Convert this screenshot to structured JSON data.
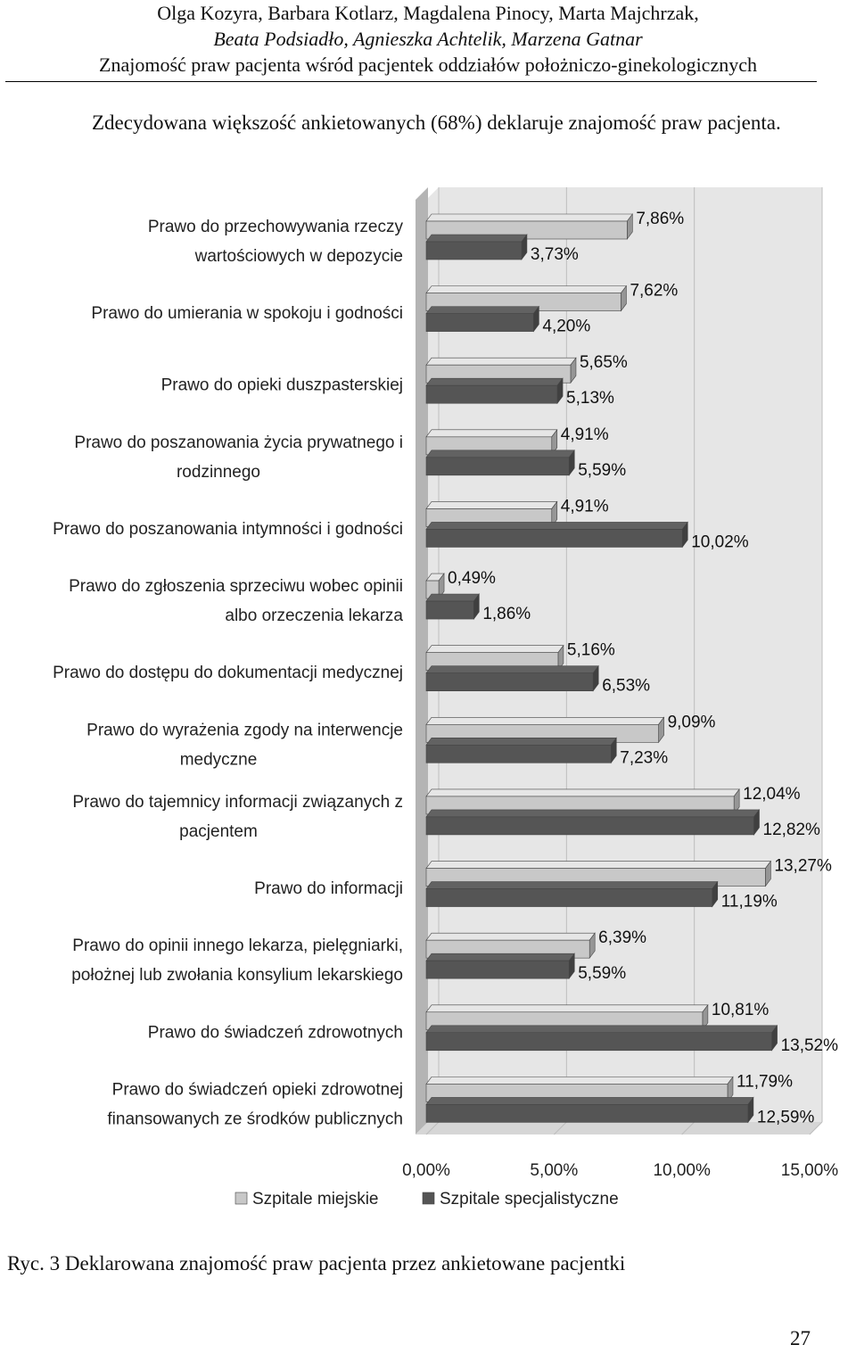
{
  "header": {
    "authors_line1": "Olga Kozyra, Barbara Kotlarz, Magdalena Pinocy, Marta Majchrzak,",
    "authors_line2": "Beata Podsiadło, Agnieszka Achtelik, Marzena Gatnar",
    "article_title": "Znajomość praw pacjenta wśród pacjentek oddziałów położniczo-ginekologicznych"
  },
  "intro_text": "Zdecydowana większość ankietowanych (68%) deklaruje znajomość praw pacjenta.",
  "caption": "Ryc. 3 Deklarowana znajomość praw pacjenta przez ankietowane pacjentki",
  "page_number": "27",
  "colors": {
    "series_light": "#c8c8c8",
    "series_dark": "#555555",
    "panel_bg": "#e6e6e6",
    "gridline": "#bdbdbd"
  },
  "chart_data": {
    "type": "bar",
    "orientation": "horizontal",
    "title": "",
    "xlabel": "",
    "ylabel": "",
    "xlim": [
      0,
      15
    ],
    "x_ticks": [
      {
        "value": 0,
        "label": "0,00%"
      },
      {
        "value": 5,
        "label": "5,00%"
      },
      {
        "value": 10,
        "label": "10,00%"
      },
      {
        "value": 15,
        "label": "15,00%"
      }
    ],
    "grid": true,
    "legend_position": "bottom",
    "categories": [
      [
        "Prawo do przechowywania  rzeczy",
        "wartościowych w depozycie"
      ],
      [
        "Prawo do umierania w spokoju i godności"
      ],
      [
        "Prawo do opieki duszpasterskiej"
      ],
      [
        "Prawo do poszanowania życia prywatnego i",
        "rodzinnego"
      ],
      [
        "Prawo do poszanowania intymności i godności"
      ],
      [
        "Prawo do zgłoszenia sprzeciwu wobec opinii",
        "albo orzeczenia lekarza"
      ],
      [
        "Prawo do dostępu do dokumentacji medycznej"
      ],
      [
        "Prawo do wyrażenia zgody na interwencje",
        "medyczne"
      ],
      [
        "Prawo do tajemnicy informacji związanych z",
        "pacjentem"
      ],
      [
        "Prawo do informacji"
      ],
      [
        "Prawo do opinii innego lekarza, pielęgniarki,",
        "położnej lub zwołania konsylium lekarskiego"
      ],
      [
        "Prawo do świadczeń zdrowotnych"
      ],
      [
        "Prawo do świadczeń opieki zdrowotnej",
        "finansowanych ze środków publicznych"
      ]
    ],
    "series": [
      {
        "name": "Szpitale miejskie",
        "values": [
          7.86,
          7.62,
          5.65,
          4.91,
          4.91,
          0.49,
          5.16,
          9.09,
          12.04,
          13.27,
          6.39,
          10.81,
          11.79
        ],
        "labels": [
          "7,86%",
          "7,62%",
          "5,65%",
          "4,91%",
          "4,91%",
          "0,49%",
          "5,16%",
          "9,09%",
          "12,04%",
          "13,27%",
          "6,39%",
          "10,81%",
          "11,79%"
        ]
      },
      {
        "name": "Szpitale specjalistyczne",
        "values": [
          3.73,
          4.2,
          5.13,
          5.59,
          10.02,
          1.86,
          6.53,
          7.23,
          12.82,
          11.19,
          5.59,
          13.52,
          12.59
        ],
        "labels": [
          "3,73%",
          "4,20%",
          "5,13%",
          "5,59%",
          "10,02%",
          "1,86%",
          "6,53%",
          "7,23%",
          "12,82%",
          "11,19%",
          "5,59%",
          "13,52%",
          "12,59%"
        ]
      }
    ]
  }
}
